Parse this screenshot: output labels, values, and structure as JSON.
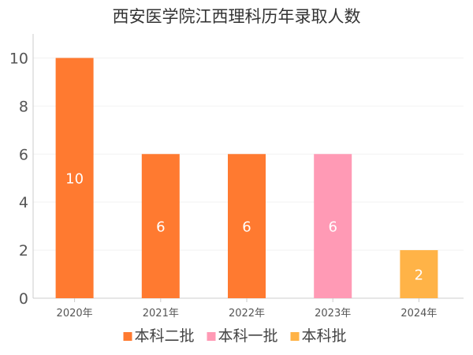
{
  "chart_data": {
    "type": "bar",
    "title": "西安医学院江西理科历年录取人数",
    "categories": [
      "2020年",
      "2021年",
      "2022年",
      "2023年",
      "2024年"
    ],
    "values": [
      10,
      6,
      6,
      6,
      2
    ],
    "bar_series": [
      "本科二批",
      "本科二批",
      "本科二批",
      "本科一批",
      "本科批"
    ],
    "legend": [
      {
        "name": "本科二批",
        "color": "#ff7a30"
      },
      {
        "name": "本科一批",
        "color": "#ff9ab5"
      },
      {
        "name": "本科批",
        "color": "#ffb347"
      }
    ],
    "ylim": [
      0,
      11
    ],
    "yticks": [
      0,
      2,
      4,
      6,
      8,
      10
    ],
    "grid": true,
    "legend_position": "bottom"
  }
}
